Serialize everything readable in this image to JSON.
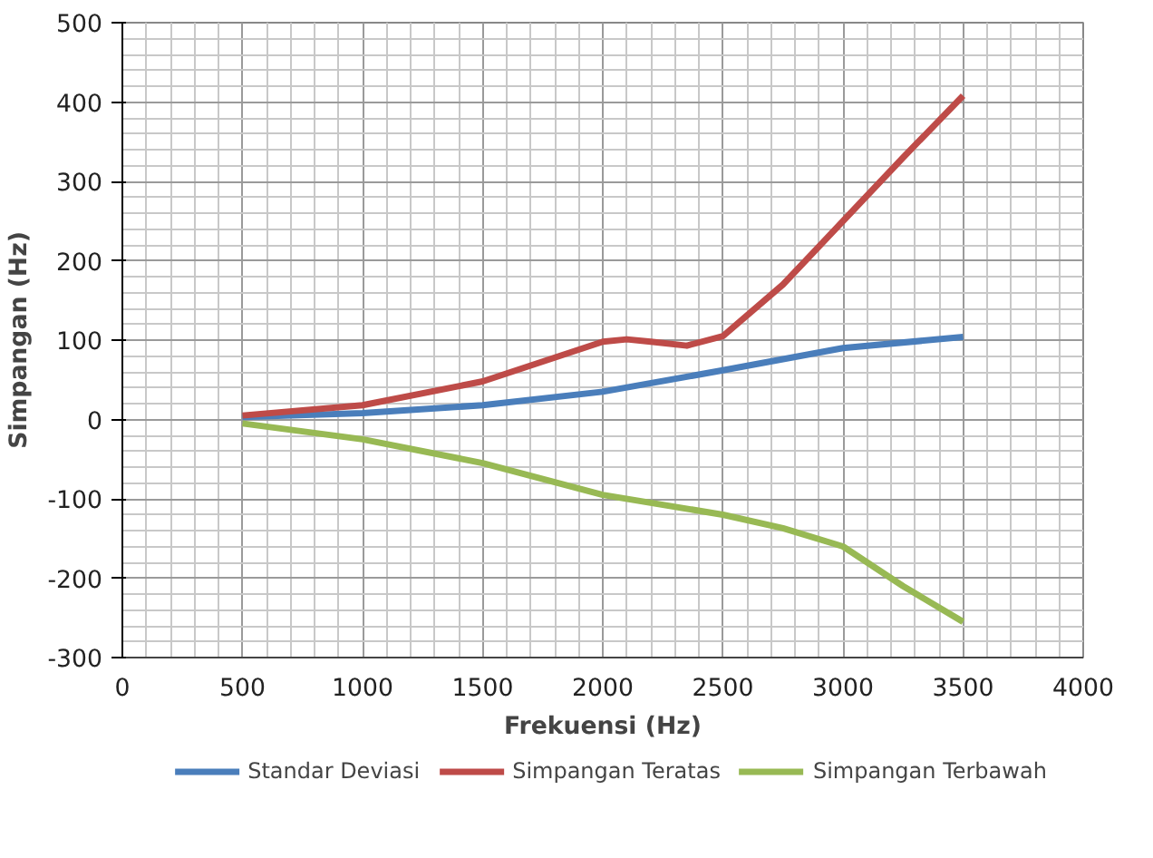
{
  "chart_data": {
    "type": "line",
    "xlabel": "Frekuensi (Hz)",
    "ylabel": "Simpangan (Hz)",
    "xlim": [
      0,
      4000
    ],
    "ylim": [
      -300,
      500
    ],
    "xticks": [
      0,
      500,
      1000,
      1500,
      2000,
      2500,
      3000,
      3500,
      4000
    ],
    "yticks": [
      -300,
      -200,
      -100,
      0,
      100,
      200,
      300,
      400,
      500
    ],
    "grid": true,
    "legend": "bottom",
    "marker": "none",
    "line_style": "solid",
    "series": [
      {
        "name": "Standar Deviasi",
        "color": "#4a7ebb",
        "x": [
          500,
          1000,
          1500,
          2000,
          2500,
          3000,
          3500
        ],
        "values": [
          3,
          8,
          18,
          35,
          62,
          90,
          104
        ]
      },
      {
        "name": "Simpangan Teratas",
        "color": "#be4b48",
        "x": [
          500,
          1000,
          1500,
          1800,
          2000,
          2100,
          2200,
          2350,
          2500,
          2750,
          3000,
          3250,
          3500
        ],
        "values": [
          5,
          18,
          48,
          78,
          98,
          101,
          98,
          93,
          105,
          170,
          250,
          330,
          408
        ]
      },
      {
        "name": "Simpangan Terbawah",
        "color": "#98b954",
        "x": [
          500,
          1000,
          1500,
          2000,
          2500,
          2750,
          3000,
          3250,
          3500
        ],
        "values": [
          -5,
          -25,
          -55,
          -95,
          -120,
          -137,
          -160,
          -210,
          -255
        ]
      }
    ]
  }
}
